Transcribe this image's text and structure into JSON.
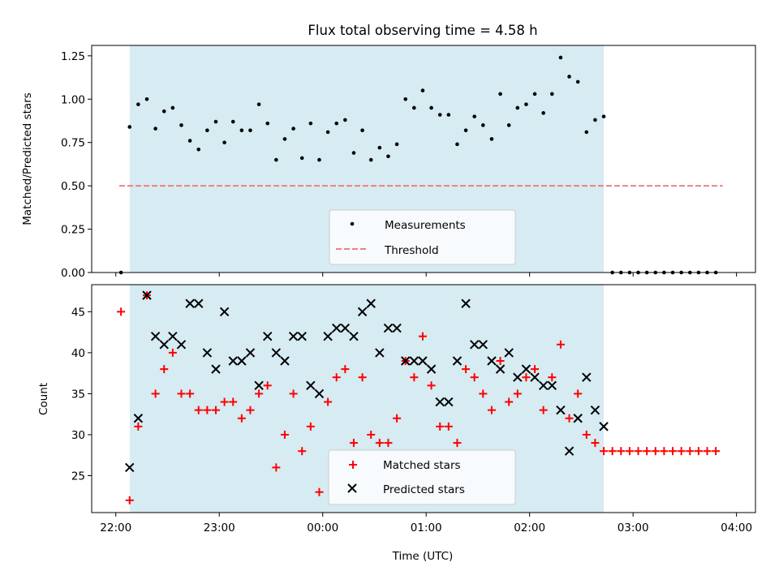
{
  "title": "Flux total observing time = 4.58 h",
  "colors": {
    "shade": "#add8e6",
    "threshold": "#f08080",
    "matched": "#ff0000",
    "predicted": "#000000",
    "measurement": "#000000"
  },
  "top_panel": {
    "ylabel": "Matched/Predicted stars",
    "yticks": [
      "0.00",
      "0.25",
      "0.50",
      "0.75",
      "1.00",
      "1.25"
    ],
    "legend": {
      "measurements": "Measurements",
      "threshold": "Threshold"
    }
  },
  "bottom_panel": {
    "ylabel": "Count",
    "yticks": [
      "25",
      "30",
      "35",
      "40",
      "45"
    ],
    "legend": {
      "matched": "Matched stars",
      "predicted": "Predicted stars"
    }
  },
  "xaxis": {
    "label": "Time (UTC)",
    "ticks": [
      "22:00",
      "23:00",
      "00:00",
      "01:00",
      "02:00",
      "03:00",
      "04:00"
    ]
  },
  "chart_data": [
    {
      "type": "scatter",
      "title": "Flux total observing time = 4.58 h",
      "xlabel": "",
      "ylabel": "Matched/Predicted stars",
      "x_unit": "minutes after 22:00 UTC",
      "xlim": [
        -14,
        371
      ],
      "ylim": [
        0,
        1.31
      ],
      "shaded_x_range": [
        8,
        283
      ],
      "threshold": {
        "name": "Threshold",
        "y": 0.5,
        "x_range": [
          2,
          352
        ],
        "style": "dashed"
      },
      "series": [
        {
          "name": "Measurements",
          "x": [
            3,
            8,
            13,
            18,
            23,
            28,
            33,
            38,
            43,
            48,
            53,
            58,
            63,
            68,
            73,
            78,
            83,
            88,
            93,
            98,
            103,
            108,
            113,
            118,
            123,
            128,
            133,
            138,
            143,
            148,
            153,
            158,
            163,
            168,
            173,
            178,
            183,
            188,
            193,
            198,
            203,
            208,
            213,
            218,
            223,
            228,
            233,
            238,
            243,
            248,
            253,
            258,
            263,
            268,
            273,
            278,
            283,
            288,
            293,
            298,
            303,
            308,
            313,
            318,
            323,
            328,
            333,
            338,
            343,
            348
          ],
          "y": [
            0.0,
            0.84,
            0.97,
            1.0,
            0.83,
            0.93,
            0.95,
            0.85,
            0.76,
            0.71,
            0.82,
            0.87,
            0.75,
            0.87,
            0.82,
            0.82,
            0.97,
            0.86,
            0.65,
            0.77,
            0.83,
            0.66,
            0.86,
            0.65,
            0.81,
            0.86,
            0.88,
            0.69,
            0.82,
            0.65,
            0.72,
            0.67,
            0.74,
            1.0,
            0.95,
            1.05,
            0.95,
            0.91,
            0.91,
            0.74,
            0.82,
            0.9,
            0.85,
            0.77,
            1.03,
            0.85,
            0.95,
            0.97,
            1.03,
            0.92,
            1.03,
            1.24,
            1.13,
            1.1,
            0.81,
            0.88,
            0.9,
            0.0,
            0.0,
            0.0,
            0.0,
            0.0,
            0.0,
            0.0,
            0.0,
            0.0,
            0.0,
            0.0,
            0.0,
            0.0
          ]
        }
      ]
    },
    {
      "type": "scatter",
      "xlabel": "Time (UTC)",
      "ylabel": "Count",
      "x_unit": "minutes after 22:00 UTC",
      "xlim": [
        -14,
        371
      ],
      "ylim": [
        20.5,
        48.3
      ],
      "shaded_x_range": [
        8,
        283
      ],
      "series": [
        {
          "name": "Matched stars",
          "marker": "+",
          "x": [
            3,
            8,
            13,
            18,
            23,
            28,
            33,
            38,
            43,
            48,
            53,
            58,
            63,
            68,
            73,
            78,
            83,
            88,
            93,
            98,
            103,
            108,
            113,
            118,
            123,
            128,
            133,
            138,
            143,
            148,
            153,
            158,
            163,
            168,
            173,
            178,
            183,
            188,
            193,
            198,
            203,
            208,
            213,
            218,
            223,
            228,
            233,
            238,
            243,
            248,
            253,
            258,
            263,
            268,
            273,
            278,
            283,
            288,
            293,
            298,
            303,
            308,
            313,
            318,
            323,
            328,
            333,
            338,
            343,
            348
          ],
          "y": [
            45,
            22,
            31,
            47,
            35,
            38,
            40,
            35,
            35,
            33,
            33,
            33,
            34,
            34,
            32,
            33,
            35,
            36,
            26,
            30,
            35,
            28,
            31,
            23,
            34,
            37,
            38,
            29,
            37,
            30,
            29,
            29,
            32,
            39,
            37,
            42,
            36,
            31,
            31,
            29,
            38,
            37,
            35,
            33,
            39,
            34,
            35,
            37,
            38,
            33,
            37,
            41,
            32,
            35,
            30,
            29,
            28,
            28,
            28,
            28,
            28,
            28,
            28,
            28,
            28,
            28,
            28,
            28,
            28,
            28
          ]
        },
        {
          "name": "Predicted stars",
          "marker": "x",
          "x": [
            8,
            13,
            18,
            23,
            28,
            33,
            38,
            43,
            48,
            53,
            58,
            63,
            68,
            73,
            78,
            83,
            88,
            93,
            98,
            103,
            108,
            113,
            118,
            123,
            128,
            133,
            138,
            143,
            148,
            153,
            158,
            163,
            168,
            173,
            178,
            183,
            188,
            193,
            198,
            203,
            208,
            213,
            218,
            223,
            228,
            233,
            238,
            243,
            248,
            253,
            258,
            263,
            268,
            273,
            278,
            283
          ],
          "y": [
            26,
            32,
            47,
            42,
            41,
            42,
            41,
            46,
            46,
            40,
            38,
            45,
            39,
            39,
            40,
            36,
            42,
            40,
            39,
            42,
            42,
            36,
            35,
            42,
            43,
            43,
            42,
            45,
            46,
            40,
            43,
            43,
            39,
            39,
            39,
            38,
            34,
            34,
            39,
            46,
            41,
            41,
            39,
            38,
            40,
            37,
            38,
            37,
            36,
            36,
            33,
            28,
            32,
            37,
            33,
            31
          ]
        }
      ]
    }
  ]
}
